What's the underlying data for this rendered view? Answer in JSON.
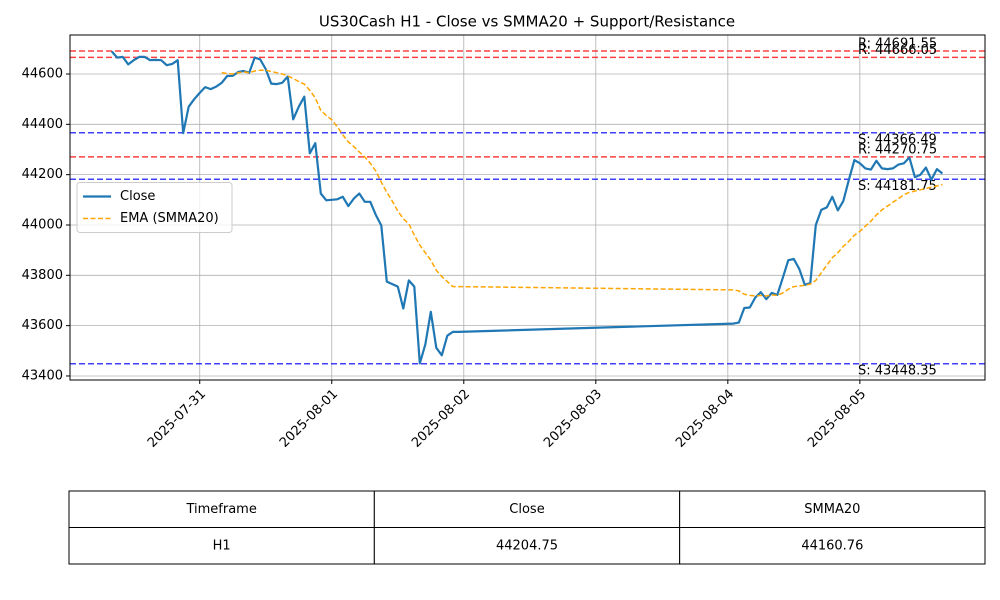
{
  "chart_data": {
    "type": "line",
    "title": "US30Cash H1 - Close vs SMMA20 + Support/Resistance",
    "x": [
      "2025-07-30 08:00",
      "2025-07-30 09:00",
      "2025-07-30 10:00",
      "2025-07-30 11:00",
      "2025-07-30 12:00",
      "2025-07-30 13:00",
      "2025-07-30 14:00",
      "2025-07-30 15:00",
      "2025-07-30 16:00",
      "2025-07-30 17:00",
      "2025-07-30 18:00",
      "2025-07-30 19:00",
      "2025-07-30 20:00",
      "2025-07-30 21:00",
      "2025-07-30 22:00",
      "2025-07-30 23:00",
      "2025-07-31 00:00",
      "2025-07-31 01:00",
      "2025-07-31 02:00",
      "2025-07-31 03:00",
      "2025-07-31 04:00",
      "2025-07-31 05:00",
      "2025-07-31 06:00",
      "2025-07-31 07:00",
      "2025-07-31 08:00",
      "2025-07-31 09:00",
      "2025-07-31 10:00",
      "2025-07-31 11:00",
      "2025-07-31 12:00",
      "2025-07-31 13:00",
      "2025-07-31 14:00",
      "2025-07-31 15:00",
      "2025-07-31 16:00",
      "2025-07-31 17:00",
      "2025-07-31 18:00",
      "2025-07-31 19:00",
      "2025-07-31 20:00",
      "2025-07-31 21:00",
      "2025-07-31 22:00",
      "2025-07-31 23:00",
      "2025-08-01 00:00",
      "2025-08-01 01:00",
      "2025-08-01 02:00",
      "2025-08-01 03:00",
      "2025-08-01 04:00",
      "2025-08-01 05:00",
      "2025-08-01 06:00",
      "2025-08-01 07:00",
      "2025-08-01 08:00",
      "2025-08-01 09:00",
      "2025-08-01 10:00",
      "2025-08-01 11:00",
      "2025-08-01 12:00",
      "2025-08-01 13:00",
      "2025-08-01 14:00",
      "2025-08-01 15:00",
      "2025-08-01 16:00",
      "2025-08-01 17:00",
      "2025-08-01 18:00",
      "2025-08-01 19:00",
      "2025-08-01 20:00",
      "2025-08-01 21:00",
      "2025-08-01 22:00",
      "2025-08-01 23:00",
      "2025-08-04 01:00",
      "2025-08-04 02:00",
      "2025-08-04 03:00",
      "2025-08-04 04:00",
      "2025-08-04 05:00",
      "2025-08-04 06:00",
      "2025-08-04 07:00",
      "2025-08-04 08:00",
      "2025-08-04 09:00",
      "2025-08-04 10:00",
      "2025-08-04 11:00",
      "2025-08-04 12:00",
      "2025-08-04 13:00",
      "2025-08-04 14:00",
      "2025-08-04 15:00",
      "2025-08-04 16:00",
      "2025-08-04 17:00",
      "2025-08-04 18:00",
      "2025-08-04 19:00",
      "2025-08-04 20:00",
      "2025-08-04 21:00",
      "2025-08-04 22:00",
      "2025-08-04 23:00",
      "2025-08-05 00:00",
      "2025-08-05 01:00",
      "2025-08-05 02:00",
      "2025-08-05 03:00",
      "2025-08-05 04:00",
      "2025-08-05 05:00",
      "2025-08-05 06:00",
      "2025-08-05 07:00",
      "2025-08-05 08:00",
      "2025-08-05 09:00",
      "2025-08-05 10:00",
      "2025-08-05 11:00",
      "2025-08-05 12:00",
      "2025-08-05 13:00",
      "2025-08-05 14:00",
      "2025-08-05 15:00"
    ],
    "series": [
      {
        "name": "Close",
        "color": "#1f77b4",
        "style": "solid",
        "values": [
          44690,
          44665,
          44668,
          44638,
          44655,
          44668,
          44668,
          44655,
          44656,
          44655,
          44635,
          44640,
          44655,
          44365,
          44470,
          44500,
          44525,
          44548,
          44540,
          44550,
          44565,
          44592,
          44593,
          44608,
          44612,
          44605,
          44665,
          44658,
          44620,
          44562,
          44560,
          44565,
          44590,
          44420,
          44470,
          44510,
          44285,
          44325,
          44125,
          44098,
          44100,
          44102,
          44112,
          44075,
          44105,
          44125,
          44092,
          44092,
          44040,
          43998,
          43775,
          43765,
          43755,
          43668,
          43780,
          43755,
          43450,
          43525,
          43655,
          43512,
          43482,
          43560,
          43575,
          43575,
          43608,
          43612,
          43670,
          43672,
          43712,
          43733,
          43705,
          43730,
          43722,
          43790,
          43860,
          43865,
          43825,
          43762,
          43770,
          44000,
          44060,
          44070,
          44112,
          44058,
          44095,
          44180,
          44258,
          44245,
          44225,
          44220,
          44255,
          44225,
          44222,
          44225,
          44240,
          44245,
          44268,
          44190,
          44200,
          44228,
          44180,
          44222,
          44204.75
        ]
      },
      {
        "name": "EMA (SMMA20)",
        "color": "#ffa500",
        "style": "dashed",
        "values": [
          null,
          null,
          null,
          null,
          null,
          null,
          null,
          null,
          null,
          null,
          null,
          null,
          null,
          null,
          null,
          null,
          null,
          null,
          null,
          null,
          44605,
          44602,
          44600,
          44605,
          44608,
          44605,
          44612,
          44615,
          44615,
          44610,
          44605,
          44600,
          44593,
          44582,
          44570,
          44560,
          44535,
          44505,
          44455,
          44435,
          44418,
          44390,
          44358,
          44330,
          44312,
          44290,
          44270,
          44245,
          44215,
          44170,
          44130,
          44095,
          44055,
          44025,
          44005,
          43960,
          43920,
          43890,
          43860,
          43820,
          43795,
          43775,
          43755,
          43755,
          43742,
          43738,
          43725,
          43720,
          43718,
          43720,
          43718,
          43722,
          43720,
          43730,
          43745,
          43755,
          43758,
          43760,
          43765,
          43780,
          43810,
          43840,
          43870,
          43890,
          43915,
          43935,
          43960,
          43975,
          43995,
          44015,
          44040,
          44060,
          44075,
          44090,
          44105,
          44120,
          44130,
          44135,
          44140,
          44145,
          44150,
          44155,
          44160.76
        ]
      }
    ],
    "levels": [
      {
        "label": "R: 44691.55",
        "value": 44691.55,
        "color": "#ff0000"
      },
      {
        "label": "R: 44666.05",
        "value": 44666.05,
        "color": "#ff0000"
      },
      {
        "label": "R: 44270.75",
        "value": 44270.75,
        "color": "#ff0000"
      },
      {
        "label": "S: 44366.49",
        "value": 44366.49,
        "color": "#0000ff"
      },
      {
        "label": "S: 44181.75",
        "value": 44181.75,
        "color": "#0000ff"
      },
      {
        "label": "S: 43448.35",
        "value": 43448.35,
        "color": "#0000ff"
      }
    ],
    "xlim": [
      "2025-07-30 00:25",
      "2025-08-05 22:45"
    ],
    "xticks": [
      "2025-07-31",
      "2025-08-01",
      "2025-08-02",
      "2025-08-03",
      "2025-08-04",
      "2025-08-05"
    ],
    "ylim": [
      43384,
      44755
    ],
    "yticks": [
      43400,
      43600,
      43800,
      44000,
      44200,
      44400,
      44600
    ],
    "grid": true,
    "legend": "center left"
  },
  "table": {
    "header": [
      "Timeframe",
      "Close",
      "SMMA20"
    ],
    "rows": [
      [
        "H1",
        "44204.75",
        "44160.76"
      ]
    ]
  }
}
